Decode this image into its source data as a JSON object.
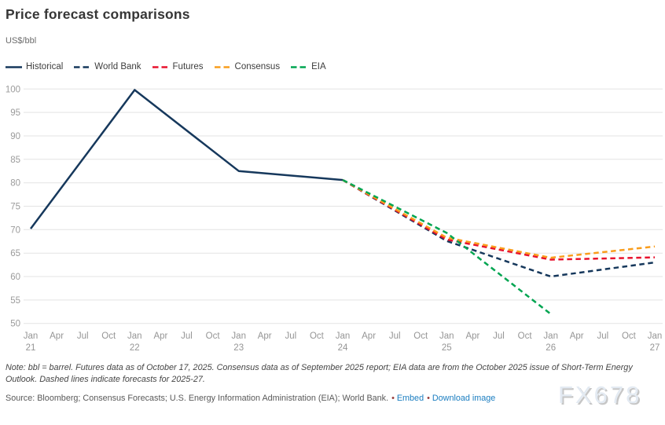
{
  "header": {
    "title": "Price forecast comparisons",
    "subtitle": "US$/bbl"
  },
  "chart_data": {
    "type": "line",
    "title": "Price forecast comparisons",
    "ylabel": "US$/bbl",
    "ylim": [
      50,
      100
    ],
    "grid": true,
    "legend_position": "top",
    "y_ticks": [
      50,
      55,
      60,
      65,
      70,
      75,
      80,
      85,
      90,
      95,
      100
    ],
    "x_ticks": [
      {
        "month": "Jan",
        "year": "21"
      },
      {
        "month": "Apr"
      },
      {
        "month": "Jul"
      },
      {
        "month": "Oct"
      },
      {
        "month": "Jan",
        "year": "22"
      },
      {
        "month": "Apr"
      },
      {
        "month": "Jul"
      },
      {
        "month": "Oct"
      },
      {
        "month": "Jan",
        "year": "23"
      },
      {
        "month": "Apr"
      },
      {
        "month": "Jul"
      },
      {
        "month": "Oct"
      },
      {
        "month": "Jan",
        "year": "24"
      },
      {
        "month": "Apr"
      },
      {
        "month": "Jul"
      },
      {
        "month": "Oct"
      },
      {
        "month": "Jan",
        "year": "25"
      },
      {
        "month": "Apr"
      },
      {
        "month": "Jul"
      },
      {
        "month": "Oct"
      },
      {
        "month": "Jan",
        "year": "26"
      },
      {
        "month": "Apr"
      },
      {
        "month": "Jul"
      },
      {
        "month": "Oct"
      },
      {
        "month": "Jan",
        "year": "27"
      }
    ],
    "series": [
      {
        "name": "Historical",
        "color": "#16385c",
        "style": "solid",
        "points": [
          {
            "x": "Jan 21",
            "y": 70.2
          },
          {
            "x": "Jan 22",
            "y": 99.8
          },
          {
            "x": "Jan 23",
            "y": 82.5
          },
          {
            "x": "Jan 24",
            "y": 80.6
          }
        ]
      },
      {
        "name": "World Bank",
        "color": "#16385c",
        "style": "dashed",
        "points": [
          {
            "x": "Jan 24",
            "y": 80.6
          },
          {
            "x": "Jan 25",
            "y": 67.6
          },
          {
            "x": "Jan 26",
            "y": 60.0
          },
          {
            "x": "Jan 27",
            "y": 63.0
          }
        ]
      },
      {
        "name": "Futures",
        "color": "#e8122d",
        "style": "dashed",
        "points": [
          {
            "x": "Jan 24",
            "y": 80.6
          },
          {
            "x": "Jan 25",
            "y": 67.9
          },
          {
            "x": "Jan 26",
            "y": 63.6
          },
          {
            "x": "Jan 27",
            "y": 64.1
          }
        ]
      },
      {
        "name": "Consensus",
        "color": "#f99d1c",
        "style": "dashed",
        "points": [
          {
            "x": "Jan 24",
            "y": 80.6
          },
          {
            "x": "Jan 25",
            "y": 68.3
          },
          {
            "x": "Jan 26",
            "y": 64.0
          },
          {
            "x": "Jan 27",
            "y": 66.4
          }
        ]
      },
      {
        "name": "EIA",
        "color": "#00a551",
        "style": "dashed",
        "points": [
          {
            "x": "Jan 24",
            "y": 80.6
          },
          {
            "x": "Jan 25",
            "y": 69.3
          },
          {
            "x": "Jan 26",
            "y": 52.0
          }
        ]
      }
    ]
  },
  "note": "Note: bbl = barrel. Futures data as of October 17, 2025. Consensus data as of September 2025 report; EIA data are from the October 2025 issue of Short-Term Energy Outlook. Dashed lines indicate forecasts for 2025-27.",
  "source": {
    "text": "Source: Bloomberg; Consensus Forecasts; U.S. Energy Information Administration (EIA); World Bank.",
    "links": [
      {
        "label": "Embed"
      },
      {
        "label": "Download image"
      }
    ]
  },
  "watermark": "FX678"
}
